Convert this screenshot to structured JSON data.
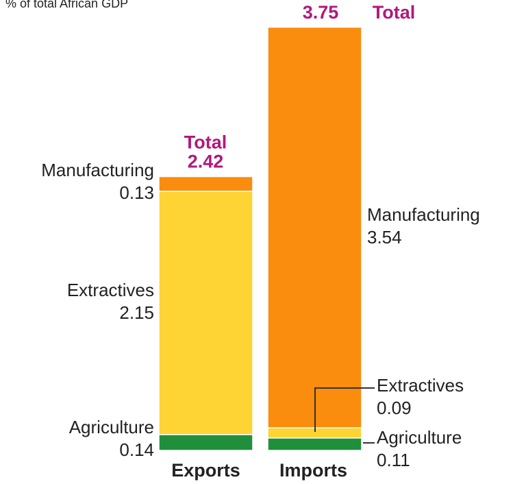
{
  "chart_data": {
    "type": "stacked-bar",
    "title": "% of total African GDP",
    "categories": [
      "Exports",
      "Imports"
    ],
    "series": [
      {
        "name": "Agriculture",
        "color": "#1f8f3c",
        "values": [
          0.14,
          0.11
        ]
      },
      {
        "name": "Extractives",
        "color": "#fed334",
        "values": [
          2.15,
          0.09
        ]
      },
      {
        "name": "Manufacturing",
        "color": "#fa8c0e",
        "values": [
          0.13,
          3.54
        ]
      }
    ],
    "total_label": "Total",
    "totals": [
      2.42,
      3.75
    ],
    "total_color": "#b3177c"
  }
}
